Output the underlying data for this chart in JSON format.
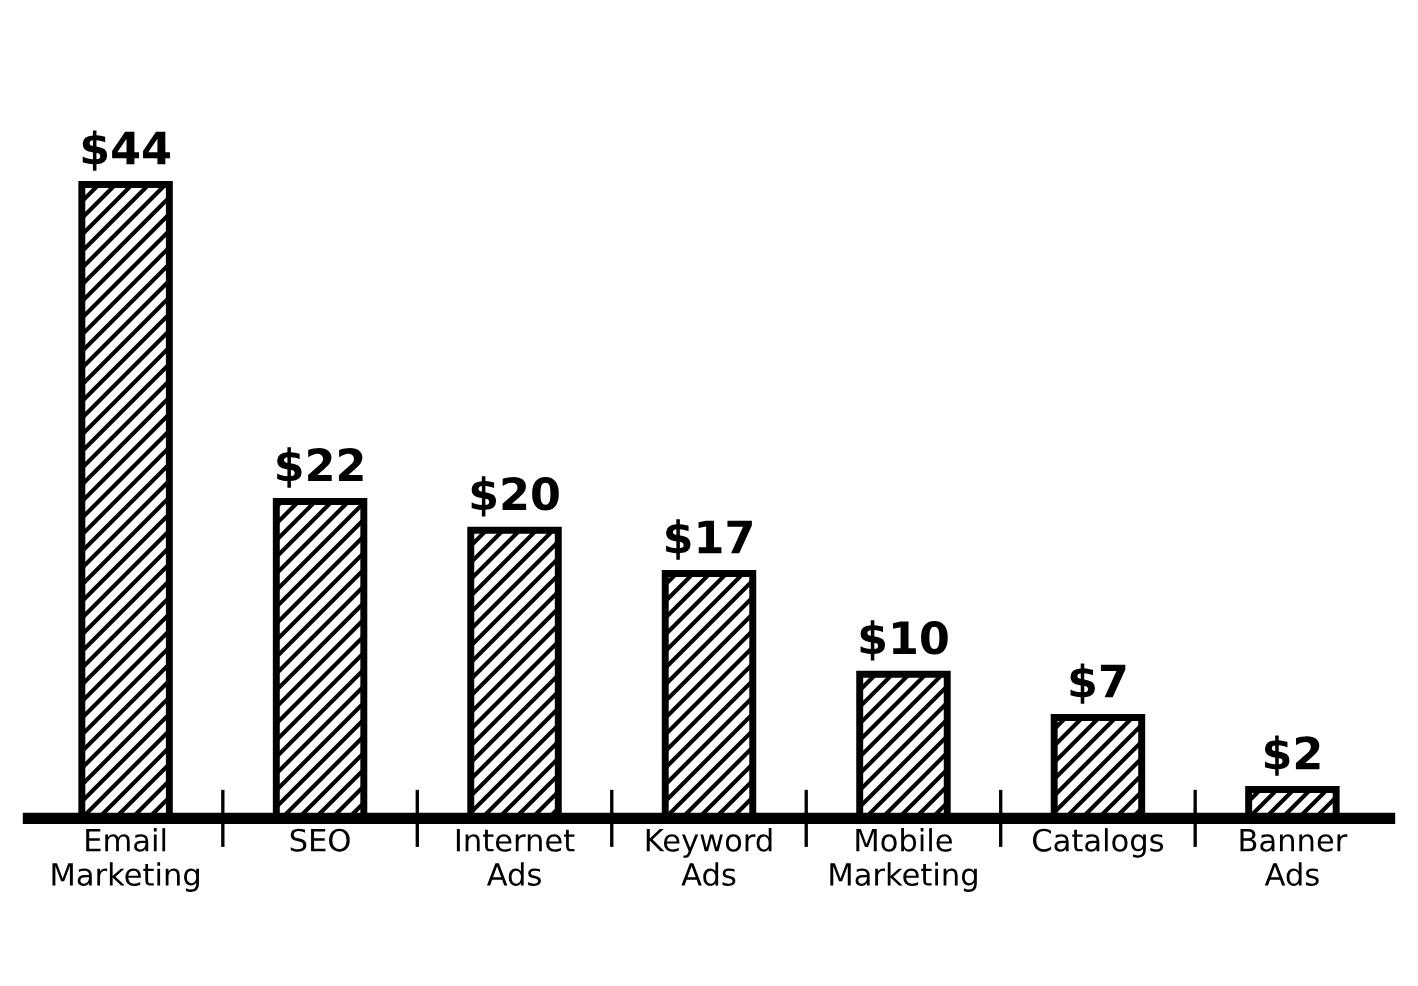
{
  "chart_data": {
    "type": "bar",
    "categories": [
      "Email\nMarketing",
      "SEO",
      "Internet\nAds",
      "Keyword\nAds",
      "Mobile\nMarketing",
      "Catalogs",
      "Banner\nAds"
    ],
    "values": [
      44,
      22,
      20,
      17,
      10,
      7,
      2
    ],
    "value_labels": [
      "$44",
      "$22",
      "$20",
      "$17",
      "$10",
      "$7",
      "$2"
    ],
    "color": "#000000",
    "tick_labels": "x",
    "grid": false
  }
}
